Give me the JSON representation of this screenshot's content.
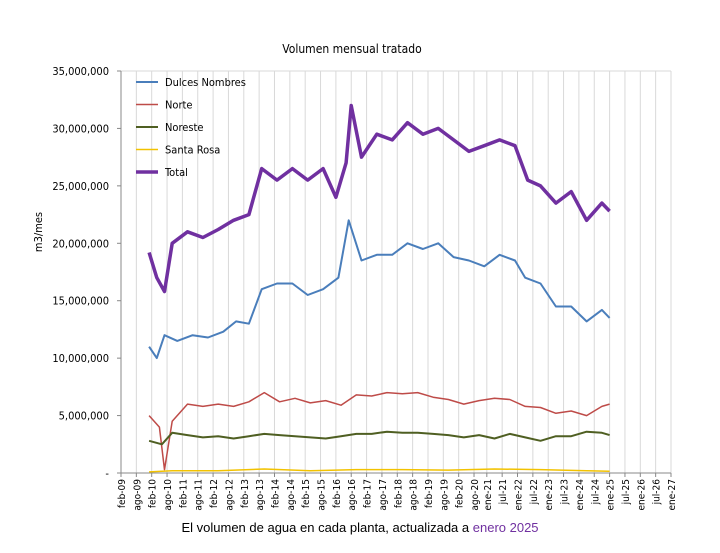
{
  "caption": {
    "text": "El volumen de agua en cada planta, actualizada a",
    "highlight": "enero 2025"
  },
  "chart_data": {
    "type": "line",
    "title": "Volumen mensual tratado",
    "ylabel": "m3/mes",
    "xlabel": "",
    "ylim": [
      0,
      35000000
    ],
    "yticks": [
      0,
      5000000,
      10000000,
      15000000,
      20000000,
      25000000,
      30000000,
      35000000
    ],
    "ytick_labels": [
      "-",
      "5,000,000",
      "10,000,000",
      "15,000,000",
      "20,000,000",
      "25,000,000",
      "30,000,000",
      "35,000,000"
    ],
    "xlim": [
      "feb-09",
      "ene-27"
    ],
    "xtick_labels": [
      "feb-09",
      "ago-09",
      "feb-10",
      "ago-10",
      "feb-11",
      "ago-11",
      "feb-12",
      "ago-12",
      "feb-13",
      "ago-13",
      "feb-14",
      "ago-14",
      "feb-15",
      "ago-15",
      "feb-16",
      "ago-16",
      "feb-17",
      "ago-17",
      "feb-18",
      "ago-18",
      "feb-19",
      "ago-19",
      "feb-20",
      "ago-20",
      "ene-21",
      "jul-21",
      "ene-22",
      "jul-22",
      "ene-23",
      "jul-23",
      "ene-24",
      "jul-24",
      "ene-25",
      "jul-25",
      "ene-26",
      "jul-26",
      "ene-27"
    ],
    "grid": "vertical",
    "legend": "top-left",
    "series": [
      {
        "name": "Dulces Nombres",
        "color": "#4A7EBB",
        "width": 2,
        "points": [
          [
            "ene-10",
            11000000
          ],
          [
            "abr-10",
            10000000
          ],
          [
            "jul-10",
            12000000
          ],
          [
            "dic-10",
            11500000
          ],
          [
            "jun-11",
            12000000
          ],
          [
            "dic-11",
            11800000
          ],
          [
            "jun-12",
            12300000
          ],
          [
            "nov-12",
            13200000
          ],
          [
            "abr-13",
            13000000
          ],
          [
            "sep-13",
            16000000
          ],
          [
            "mar-14",
            16500000
          ],
          [
            "sep-14",
            16500000
          ],
          [
            "mar-15",
            15500000
          ],
          [
            "sep-15",
            16000000
          ],
          [
            "mar-16",
            17000000
          ],
          [
            "jul-16",
            22000000
          ],
          [
            "dic-16",
            18500000
          ],
          [
            "jun-17",
            19000000
          ],
          [
            "dic-17",
            19000000
          ],
          [
            "jun-18",
            20000000
          ],
          [
            "dic-18",
            19500000
          ],
          [
            "jun-19",
            20000000
          ],
          [
            "dic-19",
            18800000
          ],
          [
            "jun-20",
            18500000
          ],
          [
            "dic-20",
            18000000
          ],
          [
            "jun-21",
            19000000
          ],
          [
            "dic-21",
            18500000
          ],
          [
            "abr-22",
            17000000
          ],
          [
            "oct-22",
            16500000
          ],
          [
            "abr-23",
            14500000
          ],
          [
            "oct-23",
            14500000
          ],
          [
            "abr-24",
            13200000
          ],
          [
            "oct-24",
            14200000
          ],
          [
            "ene-25",
            13500000
          ]
        ]
      },
      {
        "name": "Norte",
        "color": "#BE4B48",
        "width": 1.5,
        "points": [
          [
            "ene-10",
            5000000
          ],
          [
            "may-10",
            4000000
          ],
          [
            "jul-10",
            300000
          ],
          [
            "oct-10",
            4500000
          ],
          [
            "abr-11",
            6000000
          ],
          [
            "oct-11",
            5800000
          ],
          [
            "abr-12",
            6000000
          ],
          [
            "oct-12",
            5800000
          ],
          [
            "abr-13",
            6200000
          ],
          [
            "oct-13",
            7000000
          ],
          [
            "abr-14",
            6200000
          ],
          [
            "oct-14",
            6500000
          ],
          [
            "abr-15",
            6100000
          ],
          [
            "oct-15",
            6300000
          ],
          [
            "abr-16",
            5900000
          ],
          [
            "oct-16",
            6800000
          ],
          [
            "abr-17",
            6700000
          ],
          [
            "oct-17",
            7000000
          ],
          [
            "abr-18",
            6900000
          ],
          [
            "oct-18",
            7000000
          ],
          [
            "abr-19",
            6600000
          ],
          [
            "oct-19",
            6400000
          ],
          [
            "abr-20",
            6000000
          ],
          [
            "oct-20",
            6300000
          ],
          [
            "abr-21",
            6500000
          ],
          [
            "oct-21",
            6400000
          ],
          [
            "abr-22",
            5800000
          ],
          [
            "oct-22",
            5700000
          ],
          [
            "abr-23",
            5200000
          ],
          [
            "oct-23",
            5400000
          ],
          [
            "abr-24",
            5000000
          ],
          [
            "oct-24",
            5800000
          ],
          [
            "ene-25",
            6000000
          ]
        ]
      },
      {
        "name": "Noreste",
        "color": "#4F5F22",
        "width": 2,
        "points": [
          [
            "ene-10",
            2800000
          ],
          [
            "jun-10",
            2500000
          ],
          [
            "oct-10",
            3500000
          ],
          [
            "abr-11",
            3300000
          ],
          [
            "oct-11",
            3100000
          ],
          [
            "abr-12",
            3200000
          ],
          [
            "oct-12",
            3000000
          ],
          [
            "abr-13",
            3200000
          ],
          [
            "oct-13",
            3400000
          ],
          [
            "abr-14",
            3300000
          ],
          [
            "oct-14",
            3200000
          ],
          [
            "abr-15",
            3100000
          ],
          [
            "oct-15",
            3000000
          ],
          [
            "abr-16",
            3200000
          ],
          [
            "oct-16",
            3400000
          ],
          [
            "abr-17",
            3400000
          ],
          [
            "oct-17",
            3600000
          ],
          [
            "abr-18",
            3500000
          ],
          [
            "oct-18",
            3500000
          ],
          [
            "abr-19",
            3400000
          ],
          [
            "oct-19",
            3300000
          ],
          [
            "abr-20",
            3100000
          ],
          [
            "oct-20",
            3300000
          ],
          [
            "abr-21",
            3000000
          ],
          [
            "oct-21",
            3400000
          ],
          [
            "abr-22",
            3100000
          ],
          [
            "oct-22",
            2800000
          ],
          [
            "abr-23",
            3200000
          ],
          [
            "oct-23",
            3200000
          ],
          [
            "abr-24",
            3600000
          ],
          [
            "oct-24",
            3500000
          ],
          [
            "ene-25",
            3300000
          ]
        ]
      },
      {
        "name": "Santa Rosa",
        "color": "#F2C200",
        "width": 1.5,
        "points": [
          [
            "ene-10",
            100000
          ],
          [
            "oct-10",
            200000
          ],
          [
            "abr-12",
            200000
          ],
          [
            "oct-13",
            350000
          ],
          [
            "abr-15",
            200000
          ],
          [
            "oct-16",
            300000
          ],
          [
            "abr-18",
            300000
          ],
          [
            "oct-19",
            250000
          ],
          [
            "abr-21",
            350000
          ],
          [
            "oct-22",
            300000
          ],
          [
            "abr-24",
            200000
          ],
          [
            "ene-25",
            150000
          ]
        ]
      },
      {
        "name": "Total",
        "color": "#7030A0",
        "width": 3.5,
        "points": [
          [
            "ene-10",
            19200000
          ],
          [
            "abr-10",
            17000000
          ],
          [
            "jul-10",
            15800000
          ],
          [
            "oct-10",
            20000000
          ],
          [
            "abr-11",
            21000000
          ],
          [
            "oct-11",
            20500000
          ],
          [
            "abr-12",
            21200000
          ],
          [
            "oct-12",
            22000000
          ],
          [
            "abr-13",
            22500000
          ],
          [
            "sep-13",
            26500000
          ],
          [
            "mar-14",
            25500000
          ],
          [
            "sep-14",
            26500000
          ],
          [
            "mar-15",
            25500000
          ],
          [
            "sep-15",
            26500000
          ],
          [
            "feb-16",
            24000000
          ],
          [
            "jun-16",
            27000000
          ],
          [
            "ago-16",
            32000000
          ],
          [
            "dic-16",
            27500000
          ],
          [
            "jun-17",
            29500000
          ],
          [
            "dic-17",
            29000000
          ],
          [
            "jun-18",
            30500000
          ],
          [
            "dic-18",
            29500000
          ],
          [
            "jun-19",
            30000000
          ],
          [
            "dic-19",
            29000000
          ],
          [
            "jun-20",
            28000000
          ],
          [
            "dic-20",
            28500000
          ],
          [
            "jun-21",
            29000000
          ],
          [
            "dic-21",
            28500000
          ],
          [
            "may-22",
            25500000
          ],
          [
            "oct-22",
            25000000
          ],
          [
            "abr-23",
            23500000
          ],
          [
            "oct-23",
            24500000
          ],
          [
            "abr-24",
            22000000
          ],
          [
            "oct-24",
            23500000
          ],
          [
            "ene-25",
            22800000
          ]
        ]
      }
    ]
  }
}
